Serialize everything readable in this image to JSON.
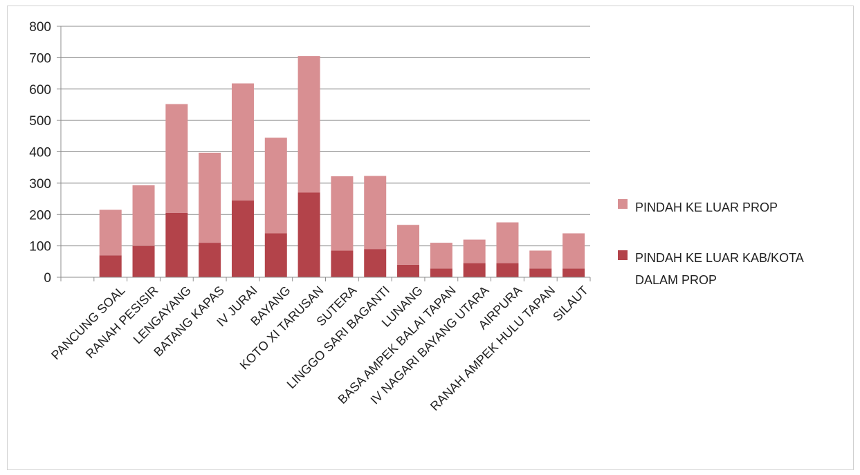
{
  "chart_data": {
    "type": "bar",
    "stacked": true,
    "categories": [
      "",
      "PANCUNG SOAL",
      "RANAH PESISIR",
      "LENGAYANG",
      "BATANG KAPAS",
      "IV JURAI",
      "BAYANG",
      "KOTO XI TARUSAN",
      "SUTERA",
      "LINGGO SARI BAGANTI",
      "LUNANG",
      "BASA AMPEK BALAI TAPAN",
      "IV NAGARI BAYANG UTARA",
      "AIRPURA",
      "RANAH AMPEK HULU TAPAN",
      "SILAUT"
    ],
    "series": [
      {
        "name": "PINDAH KE LUAR KAB/KOTA DALAM PROP",
        "color": "#b3434a",
        "values": [
          0,
          70,
          100,
          205,
          110,
          245,
          140,
          270,
          85,
          90,
          40,
          28,
          45,
          45,
          28,
          28
        ]
      },
      {
        "name": "PINDAH KE LUAR PROP",
        "color": "#d88f92",
        "values": [
          0,
          145,
          193,
          347,
          287,
          373,
          305,
          435,
          237,
          233,
          127,
          82,
          75,
          130,
          57,
          112
        ]
      }
    ],
    "yticks": [
      0,
      100,
      200,
      300,
      400,
      500,
      600,
      700,
      800
    ],
    "ylim": [
      0,
      800
    ],
    "grid": true,
    "legend": {
      "position": "right",
      "items": [
        {
          "label": "PINDAH KE LUAR PROP",
          "color": "#d88f92"
        },
        {
          "label_lines": [
            "PINDAH KE LUAR KAB/KOTA",
            "DALAM PROP"
          ],
          "color": "#b3434a"
        }
      ]
    }
  }
}
